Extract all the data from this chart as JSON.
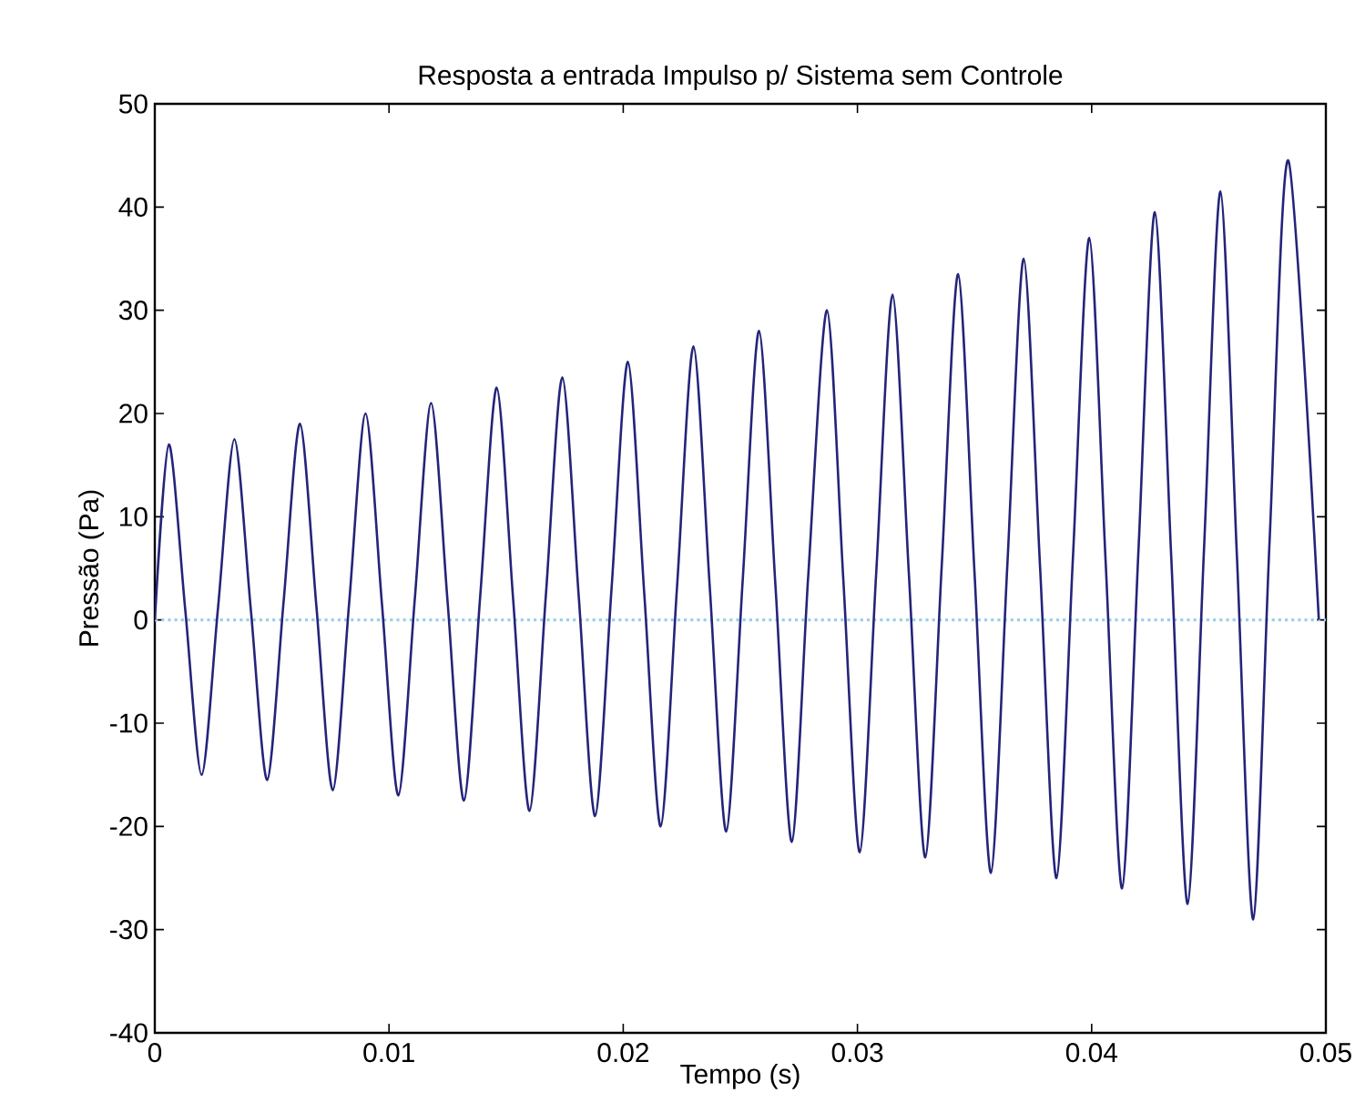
{
  "chart_data": {
    "type": "line",
    "title": "Resposta a entrada Impulso p/ Sistema sem Controle",
    "xlabel": "Tempo (s)",
    "ylabel": "Pressão (Pa)",
    "xlim": [
      0,
      0.05
    ],
    "ylim": [
      -40,
      50
    ],
    "xticks": [
      0,
      0.01,
      0.02,
      0.03,
      0.04,
      0.05
    ],
    "yticks": [
      -40,
      -30,
      -20,
      -10,
      0,
      10,
      20,
      30,
      40,
      50
    ],
    "grid": false,
    "marker": "none",
    "line_style": "solid",
    "ref_lines": [
      {
        "axis": "y",
        "value": 0,
        "color": "#9ecfe8",
        "line_style": "dotted"
      }
    ],
    "series": [
      {
        "color": "#24247a",
        "x": [
          0,
          0.0006,
          0.0013,
          0.002,
          0.0027,
          0.0034,
          0.0041,
          0.0048,
          0.0055,
          0.0062,
          0.0069,
          0.0076,
          0.0083,
          0.009,
          0.0097,
          0.0104,
          0.0111,
          0.0118,
          0.0125,
          0.0132,
          0.0139,
          0.0146,
          0.0153,
          0.016,
          0.0167,
          0.0174,
          0.0181,
          0.0188,
          0.0195,
          0.0202,
          0.0209,
          0.0216,
          0.0223,
          0.023,
          0.0237,
          0.0244,
          0.0251,
          0.0258,
          0.0265,
          0.0272,
          0.0279,
          0.0287,
          0.0294,
          0.0301,
          0.0308,
          0.0315,
          0.0322,
          0.0329,
          0.0336,
          0.0343,
          0.035,
          0.0357,
          0.0364,
          0.0371,
          0.0378,
          0.0385,
          0.0392,
          0.0399,
          0.0406,
          0.0413,
          0.042,
          0.0427,
          0.0434,
          0.0441,
          0.0448,
          0.0455,
          0.0462,
          0.0469,
          0.0476,
          0.0484,
          0.0497
        ],
        "values": [
          0,
          17,
          1,
          -15,
          1.2,
          17.5,
          1,
          -15.5,
          1.8,
          19,
          1.3,
          -16.5,
          1.7,
          20,
          1.5,
          -17,
          2,
          21,
          1.8,
          -17.5,
          2.5,
          22.5,
          2,
          -18.5,
          2.5,
          23.5,
          2.3,
          -19,
          3,
          25,
          2.5,
          -20,
          3.3,
          26.5,
          3,
          -20.5,
          3.8,
          28,
          3.3,
          -21.5,
          4.3,
          30,
          3.8,
          -22.5,
          4.5,
          31.5,
          4.3,
          -23,
          5.3,
          33.5,
          4.5,
          -24.5,
          5.3,
          35,
          5,
          -25,
          6,
          37,
          5.5,
          -26,
          6.8,
          39.5,
          6,
          -27.5,
          7,
          41.5,
          6.3,
          -29,
          7.8,
          44.5,
          0
        ]
      }
    ]
  }
}
